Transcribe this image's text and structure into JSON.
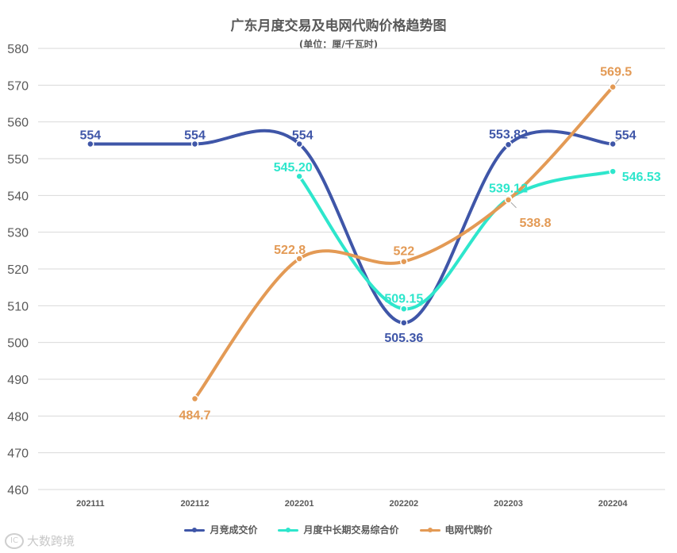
{
  "chart_data": {
    "type": "line",
    "title": "广东月度交易及电网代购价格趋势图",
    "subtitle": "(单位：厘/千瓦时)",
    "categories": [
      "202111",
      "202112",
      "202201",
      "202202",
      "202203",
      "202204"
    ],
    "ylim": [
      460,
      580
    ],
    "yticks": [
      460,
      470,
      480,
      490,
      500,
      510,
      520,
      530,
      540,
      550,
      560,
      570,
      580
    ],
    "grid": true,
    "legend_position": "bottom",
    "series": [
      {
        "name": "月竞成交价",
        "color": "#3f56a8",
        "values": [
          554,
          554,
          554,
          505.36,
          553.82,
          554
        ],
        "labels": [
          "554",
          "554",
          "554",
          "505.36",
          "553.82",
          "554"
        ]
      },
      {
        "name": "月度中长期交易综合价",
        "color": "#2ee6cc",
        "values": [
          null,
          null,
          545.2,
          509.15,
          539.12,
          546.53
        ],
        "labels": [
          "",
          "",
          "545.20",
          "509.15",
          "539.12",
          "546.53"
        ]
      },
      {
        "name": "电网代购价",
        "color": "#e39a55",
        "values": [
          null,
          484.7,
          522.8,
          522,
          538.8,
          569.5
        ],
        "labels": [
          "",
          "484.7",
          "522.8",
          "522",
          "538.8",
          "569.5"
        ]
      }
    ]
  },
  "watermark": {
    "logo_text": "IC",
    "text": "大数跨境"
  }
}
